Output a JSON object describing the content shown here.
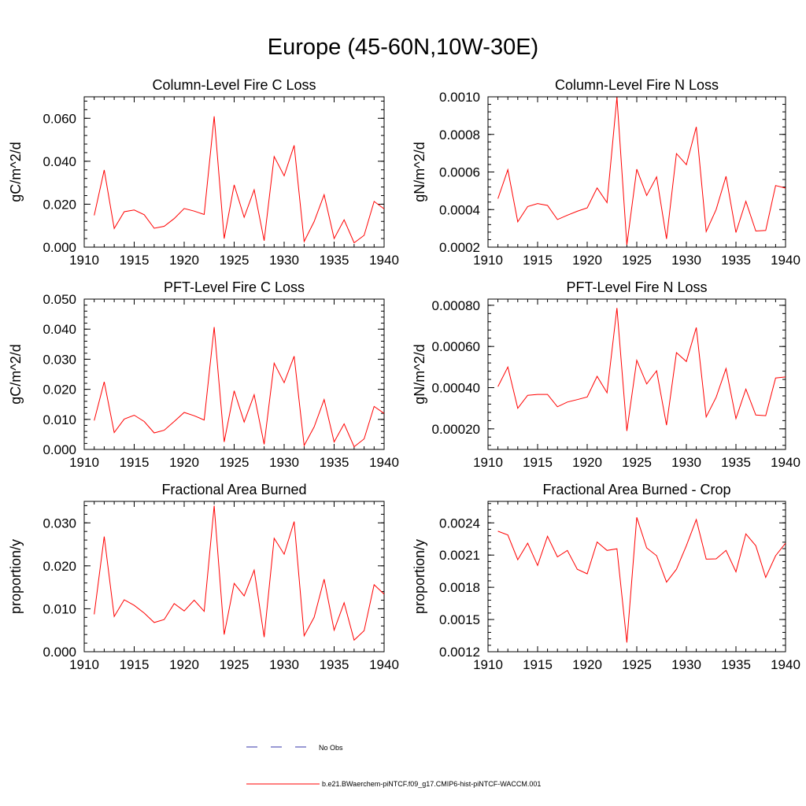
{
  "title": "Europe (45-60N,10W-30E)",
  "colors": {
    "series": "#ff0000",
    "obs": "#3333aa",
    "axis": "#000000"
  },
  "chart_data": [
    {
      "type": "line",
      "title": "Column-Level Fire C Loss",
      "ylabel": "gC/m^2/d",
      "xlim": [
        1910,
        1940
      ],
      "ylim": [
        0,
        0.07
      ],
      "xticks": [
        1910,
        1915,
        1920,
        1925,
        1930,
        1935,
        1940
      ],
      "yticks": [
        0,
        0.02,
        0.04,
        0.06
      ],
      "ytick_labels": [
        "0.000",
        "0.020",
        "0.040",
        "0.060"
      ],
      "yminor_step": 0.004,
      "x": [
        1911,
        1912,
        1913,
        1914,
        1915,
        1916,
        1917,
        1918,
        1919,
        1920,
        1921,
        1922,
        1923,
        1924,
        1925,
        1926,
        1927,
        1928,
        1929,
        1930,
        1931,
        1932,
        1933,
        1934,
        1935,
        1936,
        1937,
        1938,
        1939,
        1940
      ],
      "series": [
        {
          "name": "b.e21.BWaerchem-piNTCF.f09_g17.CMIP6-hist-piNTCF-WACCM.001",
          "values": [
            0.0148,
            0.0359,
            0.0087,
            0.0165,
            0.0173,
            0.0151,
            0.0088,
            0.0097,
            0.0133,
            0.018,
            0.0168,
            0.0152,
            0.0609,
            0.004,
            0.029,
            0.0139,
            0.0267,
            0.003,
            0.0422,
            0.0332,
            0.0474,
            0.0026,
            0.0119,
            0.0244,
            0.004,
            0.0127,
            0.002,
            0.0055,
            0.0213,
            0.0178
          ]
        }
      ]
    },
    {
      "type": "line",
      "title": "Column-Level Fire N Loss",
      "ylabel": "gN/m^2/d",
      "xlim": [
        1910,
        1940
      ],
      "ylim": [
        0.0002,
        0.001
      ],
      "xticks": [
        1910,
        1915,
        1920,
        1925,
        1930,
        1935,
        1940
      ],
      "yticks": [
        0.0002,
        0.0004,
        0.0006,
        0.0008,
        0.001
      ],
      "ytick_labels": [
        "0.0002",
        "0.0004",
        "0.0006",
        "0.0008",
        "0.0010"
      ],
      "yminor_step": 4e-05,
      "x": [
        1911,
        1912,
        1913,
        1914,
        1915,
        1916,
        1917,
        1918,
        1919,
        1920,
        1921,
        1922,
        1923,
        1924,
        1925,
        1926,
        1927,
        1928,
        1929,
        1930,
        1931,
        1932,
        1933,
        1934,
        1935,
        1936,
        1937,
        1938,
        1939,
        1940
      ],
      "series": [
        {
          "name": "b.e21.BWaerchem-piNTCF.f09_g17.CMIP6-hist-piNTCF-WACCM.001",
          "values": [
            0.000458,
            0.000612,
            0.000335,
            0.000416,
            0.000432,
            0.000422,
            0.000347,
            0.00037,
            0.000391,
            0.000409,
            0.000515,
            0.000437,
            0.000998,
            0.000212,
            0.000615,
            0.000475,
            0.000574,
            0.000244,
            0.000698,
            0.000639,
            0.00084,
            0.000283,
            0.0004,
            0.000577,
            0.000278,
            0.000444,
            0.000286,
            0.000289,
            0.000528,
            0.000514
          ]
        }
      ]
    },
    {
      "type": "line",
      "title": "PFT-Level Fire C Loss",
      "ylabel": "gC/m^2/d",
      "xlim": [
        1910,
        1940
      ],
      "ylim": [
        0,
        0.05
      ],
      "xticks": [
        1910,
        1915,
        1920,
        1925,
        1930,
        1935,
        1940
      ],
      "yticks": [
        0,
        0.01,
        0.02,
        0.03,
        0.04,
        0.05
      ],
      "ytick_labels": [
        "0.000",
        "0.010",
        "0.020",
        "0.030",
        "0.040",
        "0.050"
      ],
      "yminor_step": 0.002,
      "x": [
        1911,
        1912,
        1913,
        1914,
        1915,
        1916,
        1917,
        1918,
        1919,
        1920,
        1921,
        1922,
        1923,
        1924,
        1925,
        1926,
        1927,
        1928,
        1929,
        1930,
        1931,
        1932,
        1933,
        1934,
        1935,
        1936,
        1937,
        1938,
        1939,
        1940
      ],
      "series": [
        {
          "name": "b.e21.BWaerchem-piNTCF.f09_g17.CMIP6-hist-piNTCF-WACCM.001",
          "values": [
            0.0096,
            0.0225,
            0.0056,
            0.0101,
            0.0114,
            0.0093,
            0.0055,
            0.0064,
            0.0093,
            0.0123,
            0.0112,
            0.0098,
            0.0407,
            0.0025,
            0.0195,
            0.0091,
            0.0182,
            0.0017,
            0.0287,
            0.0222,
            0.031,
            0.0013,
            0.0075,
            0.0166,
            0.0025,
            0.0085,
            0.0009,
            0.0035,
            0.0143,
            0.012
          ]
        }
      ]
    },
    {
      "type": "line",
      "title": "PFT-Level Fire N Loss",
      "ylabel": "gN/m^2/d",
      "xlim": [
        1910,
        1940
      ],
      "ylim": [
        0.0001,
        0.00083
      ],
      "xticks": [
        1910,
        1915,
        1920,
        1925,
        1930,
        1935,
        1940
      ],
      "yticks": [
        0.0002,
        0.0004,
        0.0006,
        0.0008
      ],
      "ytick_labels": [
        "0.00020",
        "0.00040",
        "0.00060",
        "0.00080"
      ],
      "yminor_step": 4e-05,
      "x": [
        1911,
        1912,
        1913,
        1914,
        1915,
        1916,
        1917,
        1918,
        1919,
        1920,
        1921,
        1922,
        1923,
        1924,
        1925,
        1926,
        1927,
        1928,
        1929,
        1930,
        1931,
        1932,
        1933,
        1934,
        1935,
        1936,
        1937,
        1938,
        1939,
        1940
      ],
      "series": [
        {
          "name": "b.e21.BWaerchem-piNTCF.f09_g17.CMIP6-hist-piNTCF-WACCM.001",
          "values": [
            0.000405,
            0.0005,
            0.0003,
            0.000363,
            0.000367,
            0.000367,
            0.000307,
            0.00033,
            0.000342,
            0.000355,
            0.000455,
            0.000375,
            0.000787,
            0.00019,
            0.000533,
            0.000418,
            0.000482,
            0.000218,
            0.00057,
            0.000527,
            0.000692,
            0.000258,
            0.000353,
            0.000493,
            0.00025,
            0.000393,
            0.000267,
            0.000264,
            0.000447,
            0.000452
          ]
        }
      ]
    },
    {
      "type": "line",
      "title": "Fractional Area Burned",
      "ylabel": "proportion/y",
      "xlim": [
        1910,
        1940
      ],
      "ylim": [
        0,
        0.035
      ],
      "xticks": [
        1910,
        1915,
        1920,
        1925,
        1930,
        1935,
        1940
      ],
      "yticks": [
        0,
        0.01,
        0.02,
        0.03
      ],
      "ytick_labels": [
        "0.000",
        "0.010",
        "0.020",
        "0.030"
      ],
      "yminor_step": 0.002,
      "x": [
        1911,
        1912,
        1913,
        1914,
        1915,
        1916,
        1917,
        1918,
        1919,
        1920,
        1921,
        1922,
        1923,
        1924,
        1925,
        1926,
        1927,
        1928,
        1929,
        1930,
        1931,
        1932,
        1933,
        1934,
        1935,
        1936,
        1937,
        1938,
        1939,
        1940
      ],
      "series": [
        {
          "name": "b.e21.BWaerchem-piNTCF.f09_g17.CMIP6-hist-piNTCF-WACCM.001",
          "values": [
            0.0087,
            0.0268,
            0.0082,
            0.0121,
            0.0108,
            0.009,
            0.0068,
            0.0075,
            0.0112,
            0.0095,
            0.012,
            0.0094,
            0.034,
            0.004,
            0.0159,
            0.013,
            0.019,
            0.0034,
            0.0264,
            0.0227,
            0.0303,
            0.0037,
            0.008,
            0.0169,
            0.005,
            0.0114,
            0.0027,
            0.0049,
            0.0156,
            0.0134
          ]
        }
      ]
    },
    {
      "type": "line",
      "title": "Fractional Area Burned - Crop",
      "ylabel": "proportion/y",
      "xlim": [
        1910,
        1940
      ],
      "ylim": [
        0.0012,
        0.0026
      ],
      "xticks": [
        1910,
        1915,
        1920,
        1925,
        1930,
        1935,
        1940
      ],
      "yticks": [
        0.0012,
        0.0015,
        0.0018,
        0.0021,
        0.0024
      ],
      "ytick_labels": [
        "0.0012",
        "0.0015",
        "0.0018",
        "0.0021",
        "0.0024"
      ],
      "yminor_step": 6e-05,
      "x": [
        1911,
        1912,
        1913,
        1914,
        1915,
        1916,
        1917,
        1918,
        1919,
        1920,
        1921,
        1922,
        1923,
        1924,
        1925,
        1926,
        1927,
        1928,
        1929,
        1930,
        1931,
        1932,
        1933,
        1934,
        1935,
        1936,
        1937,
        1938,
        1939,
        1940
      ],
      "series": [
        {
          "name": "b.e21.BWaerchem-piNTCF.f09_g17.CMIP6-hist-piNTCF-WACCM.001",
          "values": [
            0.002322,
            0.002287,
            0.002057,
            0.002211,
            0.002003,
            0.002275,
            0.002083,
            0.002143,
            0.001968,
            0.001926,
            0.002222,
            0.002143,
            0.002159,
            0.001286,
            0.002451,
            0.002167,
            0.002094,
            0.001848,
            0.001968,
            0.002187,
            0.002431,
            0.002062,
            0.002065,
            0.002143,
            0.001944,
            0.002297,
            0.002187,
            0.001892,
            0.002094,
            0.002211
          ]
        }
      ]
    }
  ],
  "legend": {
    "items": [
      {
        "label": "No Obs",
        "style": "dashed",
        "color": "#3333aa"
      },
      {
        "label": "b.e21.BWaerchem-piNTCF.f09_g17.CMIP6-hist-piNTCF-WACCM.001",
        "style": "solid",
        "color": "#ff0000"
      }
    ]
  }
}
